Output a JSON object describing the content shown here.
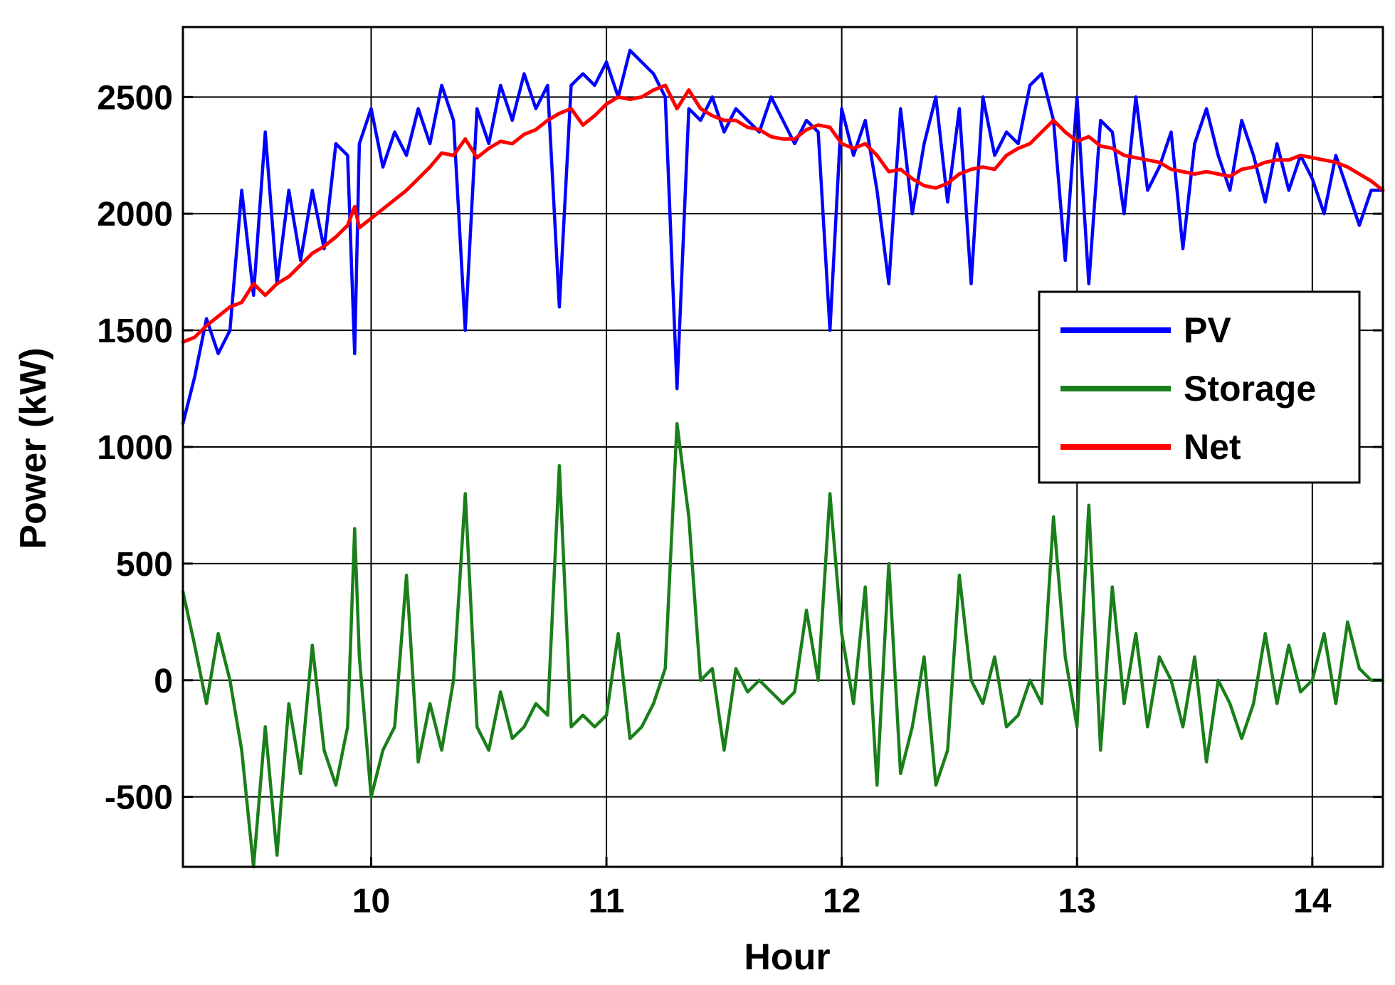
{
  "chart_data": {
    "type": "line",
    "xlabel": "Hour",
    "ylabel": "Power (kW)",
    "xlim": [
      9.2,
      14.3
    ],
    "ylim": [
      -800,
      2800
    ],
    "xticks": [
      10,
      11,
      12,
      13,
      14
    ],
    "yticks": [
      -500,
      0,
      500,
      1000,
      1500,
      2000,
      2500
    ],
    "grid": true,
    "legend_position": "right",
    "series": [
      {
        "name": "PV",
        "color": "#0000ff",
        "x": [
          9.2,
          9.25,
          9.3,
          9.35,
          9.4,
          9.45,
          9.5,
          9.55,
          9.6,
          9.65,
          9.7,
          9.75,
          9.8,
          9.85,
          9.9,
          9.93,
          9.95,
          10.0,
          10.05,
          10.1,
          10.15,
          10.2,
          10.25,
          10.3,
          10.35,
          10.4,
          10.45,
          10.5,
          10.55,
          10.6,
          10.65,
          10.7,
          10.75,
          10.8,
          10.85,
          10.9,
          10.95,
          11.0,
          11.05,
          11.1,
          11.15,
          11.2,
          11.25,
          11.3,
          11.35,
          11.4,
          11.45,
          11.5,
          11.55,
          11.6,
          11.65,
          11.7,
          11.75,
          11.8,
          11.85,
          11.9,
          11.95,
          12.0,
          12.05,
          12.1,
          12.15,
          12.2,
          12.25,
          12.3,
          12.35,
          12.4,
          12.45,
          12.5,
          12.55,
          12.6,
          12.65,
          12.7,
          12.75,
          12.8,
          12.85,
          12.9,
          12.95,
          13.0,
          13.05,
          13.1,
          13.15,
          13.2,
          13.25,
          13.3,
          13.35,
          13.4,
          13.45,
          13.5,
          13.55,
          13.6,
          13.65,
          13.7,
          13.75,
          13.8,
          13.85,
          13.9,
          13.95,
          14.0,
          14.05,
          14.1,
          14.15,
          14.2,
          14.25,
          14.3
        ],
        "values": [
          1100,
          1300,
          1550,
          1400,
          1500,
          2100,
          1650,
          2350,
          1700,
          2100,
          1800,
          2100,
          1850,
          2300,
          2250,
          1400,
          2300,
          2450,
          2200,
          2350,
          2250,
          2450,
          2300,
          2550,
          2400,
          1500,
          2450,
          2300,
          2550,
          2400,
          2600,
          2450,
          2550,
          1600,
          2550,
          2600,
          2550,
          2650,
          2500,
          2700,
          2650,
          2600,
          2500,
          1250,
          2450,
          2400,
          2500,
          2350,
          2450,
          2400,
          2350,
          2500,
          2400,
          2300,
          2400,
          2350,
          1500,
          2450,
          2250,
          2400,
          2100,
          1700,
          2450,
          2000,
          2300,
          2500,
          2050,
          2450,
          1700,
          2500,
          2250,
          2350,
          2300,
          2550,
          2600,
          2400,
          1800,
          2500,
          1700,
          2400,
          2350,
          2000,
          2500,
          2100,
          2200,
          2350,
          1850,
          2300,
          2450,
          2250,
          2100,
          2400,
          2250,
          2050,
          2300,
          2100,
          2250,
          2150,
          2000,
          2250,
          2100,
          1950,
          2100,
          2100
        ]
      },
      {
        "name": "Storage",
        "color": "#1a7f1a",
        "x": [
          9.2,
          9.25,
          9.3,
          9.35,
          9.4,
          9.45,
          9.5,
          9.55,
          9.6,
          9.65,
          9.7,
          9.75,
          9.8,
          9.85,
          9.9,
          9.93,
          9.95,
          10.0,
          10.05,
          10.1,
          10.15,
          10.2,
          10.25,
          10.3,
          10.35,
          10.4,
          10.45,
          10.5,
          10.55,
          10.6,
          10.65,
          10.7,
          10.75,
          10.8,
          10.85,
          10.9,
          10.95,
          11.0,
          11.05,
          11.1,
          11.15,
          11.2,
          11.25,
          11.3,
          11.35,
          11.4,
          11.45,
          11.5,
          11.55,
          11.6,
          11.65,
          11.7,
          11.75,
          11.8,
          11.85,
          11.9,
          11.95,
          12.0,
          12.05,
          12.1,
          12.15,
          12.2,
          12.25,
          12.3,
          12.35,
          12.4,
          12.45,
          12.5,
          12.55,
          12.6,
          12.65,
          12.7,
          12.75,
          12.8,
          12.85,
          12.9,
          12.95,
          13.0,
          13.05,
          13.1,
          13.15,
          13.2,
          13.25,
          13.3,
          13.35,
          13.4,
          13.45,
          13.5,
          13.55,
          13.6,
          13.65,
          13.7,
          13.75,
          13.8,
          13.85,
          13.9,
          13.95,
          14.0,
          14.05,
          14.1,
          14.15,
          14.2,
          14.25,
          14.3
        ],
        "values": [
          380,
          150,
          -100,
          200,
          0,
          -300,
          -800,
          -200,
          -750,
          -100,
          -400,
          150,
          -300,
          -450,
          -200,
          650,
          100,
          -500,
          -300,
          -200,
          450,
          -350,
          -100,
          -300,
          0,
          800,
          -200,
          -300,
          -50,
          -250,
          -200,
          -100,
          -150,
          920,
          -200,
          -150,
          -200,
          -150,
          200,
          -250,
          -200,
          -100,
          50,
          1100,
          700,
          0,
          50,
          -300,
          50,
          -50,
          0,
          -50,
          -100,
          -50,
          300,
          0,
          800,
          200,
          -100,
          400,
          -450,
          500,
          -400,
          -200,
          100,
          -450,
          -300,
          450,
          0,
          -100,
          100,
          -200,
          -150,
          0,
          -100,
          700,
          100,
          -200,
          750,
          -300,
          400,
          -100,
          200,
          -200,
          100,
          0,
          -200,
          100,
          -350,
          0,
          -100,
          -250,
          -100,
          200,
          -100,
          150,
          -50,
          0,
          200,
          -100,
          250,
          50,
          0,
          0
        ]
      },
      {
        "name": "Net",
        "color": "#ff0000",
        "x": [
          9.2,
          9.25,
          9.3,
          9.35,
          9.4,
          9.45,
          9.5,
          9.55,
          9.6,
          9.65,
          9.7,
          9.75,
          9.8,
          9.85,
          9.9,
          9.93,
          9.95,
          10.0,
          10.05,
          10.1,
          10.15,
          10.2,
          10.25,
          10.3,
          10.35,
          10.4,
          10.45,
          10.5,
          10.55,
          10.6,
          10.65,
          10.7,
          10.75,
          10.8,
          10.85,
          10.9,
          10.95,
          11.0,
          11.05,
          11.1,
          11.15,
          11.2,
          11.25,
          11.3,
          11.35,
          11.4,
          11.45,
          11.5,
          11.55,
          11.6,
          11.65,
          11.7,
          11.75,
          11.8,
          11.85,
          11.9,
          11.95,
          12.0,
          12.05,
          12.1,
          12.15,
          12.2,
          12.25,
          12.3,
          12.35,
          12.4,
          12.45,
          12.5,
          12.55,
          12.6,
          12.65,
          12.7,
          12.75,
          12.8,
          12.85,
          12.9,
          12.95,
          13.0,
          13.05,
          13.1,
          13.15,
          13.2,
          13.25,
          13.3,
          13.35,
          13.4,
          13.45,
          13.5,
          13.55,
          13.6,
          13.65,
          13.7,
          13.75,
          13.8,
          13.85,
          13.9,
          13.95,
          14.0,
          14.05,
          14.1,
          14.15,
          14.2,
          14.25,
          14.3
        ],
        "values": [
          1450,
          1470,
          1520,
          1560,
          1600,
          1620,
          1700,
          1650,
          1700,
          1730,
          1780,
          1830,
          1860,
          1900,
          1950,
          2030,
          1940,
          1980,
          2020,
          2060,
          2100,
          2150,
          2200,
          2260,
          2250,
          2320,
          2240,
          2280,
          2310,
          2300,
          2340,
          2360,
          2400,
          2430,
          2450,
          2380,
          2420,
          2470,
          2500,
          2490,
          2500,
          2530,
          2550,
          2450,
          2530,
          2450,
          2420,
          2400,
          2400,
          2370,
          2360,
          2330,
          2320,
          2320,
          2360,
          2380,
          2370,
          2300,
          2280,
          2300,
          2250,
          2180,
          2190,
          2150,
          2120,
          2110,
          2130,
          2170,
          2190,
          2200,
          2190,
          2250,
          2280,
          2300,
          2350,
          2400,
          2350,
          2310,
          2330,
          2290,
          2280,
          2250,
          2240,
          2230,
          2220,
          2190,
          2180,
          2170,
          2180,
          2170,
          2160,
          2190,
          2200,
          2220,
          2230,
          2230,
          2250,
          2240,
          2230,
          2220,
          2200,
          2170,
          2140,
          2100
        ]
      }
    ]
  }
}
